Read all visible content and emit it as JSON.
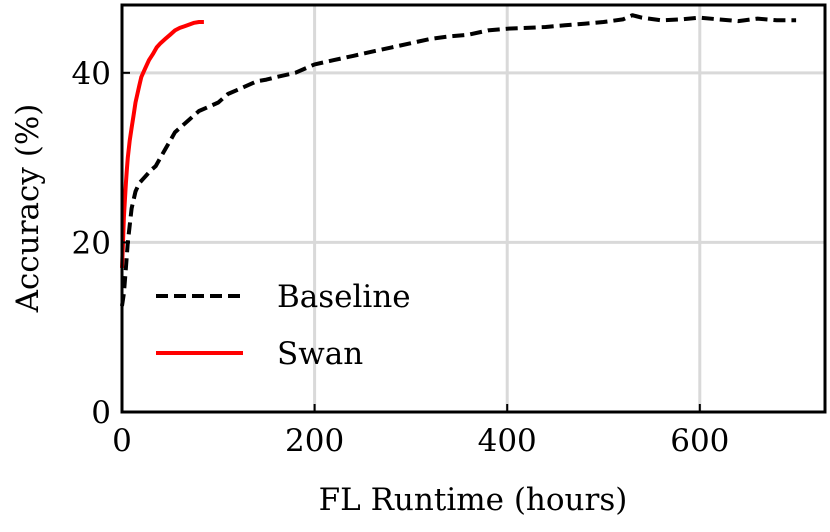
{
  "chart_data": {
    "type": "line",
    "title": "",
    "xlabel": "FL Runtime (hours)",
    "ylabel": "Accuracy (%)",
    "xlim": [
      0,
      730
    ],
    "ylim": [
      0,
      48
    ],
    "xticks": [
      0,
      200,
      400,
      600
    ],
    "yticks": [
      0,
      20,
      40
    ],
    "grid": true,
    "legend_position": "lower-left",
    "series": [
      {
        "name": "Baseline",
        "color": "#000000",
        "dash": "dashed",
        "x": [
          0,
          2,
          4,
          6,
          8,
          10,
          14,
          18,
          22,
          26,
          30,
          35,
          40,
          45,
          50,
          55,
          60,
          65,
          70,
          75,
          80,
          90,
          100,
          110,
          120,
          130,
          140,
          150,
          160,
          180,
          200,
          220,
          240,
          260,
          280,
          300,
          320,
          340,
          360,
          380,
          400,
          420,
          440,
          460,
          480,
          500,
          520,
          530,
          540,
          560,
          580,
          600,
          620,
          640,
          660,
          680,
          700
        ],
        "y": [
          12.5,
          14,
          17,
          20,
          22,
          24,
          26,
          27,
          27.5,
          28,
          28.5,
          29,
          30,
          31,
          32,
          33,
          33.5,
          34,
          34.5,
          35,
          35.5,
          36,
          36.5,
          37.5,
          38,
          38.5,
          39,
          39.2,
          39.5,
          40,
          41,
          41.5,
          42,
          42.5,
          43,
          43.5,
          44,
          44.3,
          44.5,
          45,
          45.2,
          45.3,
          45.4,
          45.6,
          45.8,
          46,
          46.3,
          46.8,
          46.5,
          46.2,
          46.3,
          46.5,
          46.3,
          46.1,
          46.4,
          46.2,
          46.2
        ]
      },
      {
        "name": "Swan",
        "color": "#ff0000",
        "dash": "solid",
        "x": [
          0,
          1,
          2,
          3,
          4,
          5,
          6,
          8,
          10,
          12,
          14,
          16,
          18,
          20,
          24,
          28,
          32,
          36,
          40,
          45,
          50,
          55,
          60,
          65,
          70,
          75,
          80,
          85
        ],
        "y": [
          17,
          20,
          23,
          25,
          27,
          28.5,
          30,
          32,
          33.5,
          35,
          36.5,
          37.5,
          38.5,
          39.5,
          40.5,
          41.5,
          42.2,
          43,
          43.5,
          44,
          44.5,
          45,
          45.3,
          45.5,
          45.7,
          45.9,
          46,
          46
        ]
      }
    ]
  }
}
